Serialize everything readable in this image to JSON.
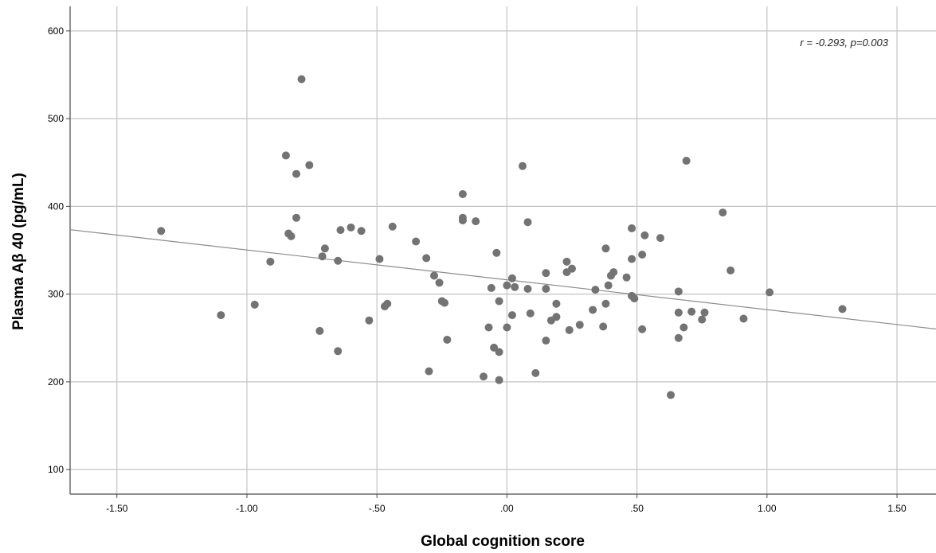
{
  "chart_data": {
    "type": "scatter",
    "title": "",
    "xlabel": "Global cognition score",
    "ylabel": "Plasma Aβ 40 (pg/mL)",
    "xlim": [
      -1.68,
      1.65
    ],
    "ylim": [
      72,
      628
    ],
    "x_ticks": [
      -1.5,
      -1.0,
      -0.5,
      0.0,
      0.5,
      1.0,
      1.5
    ],
    "x_tick_labels": [
      "-1.50",
      "-1.00",
      "-.50",
      ".00",
      ".50",
      "1.00",
      "1.50"
    ],
    "y_ticks": [
      100,
      200,
      300,
      400,
      500,
      600
    ],
    "y_tick_labels": [
      "100",
      "200",
      "300",
      "400",
      "500",
      "600"
    ],
    "grid": true,
    "annotation": "r = -0.293, p=0.003",
    "fit_line": {
      "slope": -34.0,
      "intercept": 316.3
    },
    "colors": {
      "points": "#737373",
      "fit_line": "#8c8c8c",
      "grid": "#c4c4c4",
      "axis": "#4a4a4a"
    },
    "points": [
      [
        -1.33,
        372
      ],
      [
        -1.1,
        276
      ],
      [
        -0.97,
        288
      ],
      [
        -0.91,
        337
      ],
      [
        -0.85,
        458
      ],
      [
        -0.84,
        369
      ],
      [
        -0.83,
        366
      ],
      [
        -0.81,
        437
      ],
      [
        -0.81,
        387
      ],
      [
        -0.79,
        545
      ],
      [
        -0.76,
        447
      ],
      [
        -0.72,
        258
      ],
      [
        -0.71,
        343
      ],
      [
        -0.7,
        352
      ],
      [
        -0.65,
        338
      ],
      [
        -0.65,
        235
      ],
      [
        -0.64,
        373
      ],
      [
        -0.6,
        376
      ],
      [
        -0.56,
        372
      ],
      [
        -0.53,
        270
      ],
      [
        -0.49,
        340
      ],
      [
        -0.47,
        286
      ],
      [
        -0.46,
        289
      ],
      [
        -0.44,
        377
      ],
      [
        -0.35,
        360
      ],
      [
        -0.31,
        341
      ],
      [
        -0.3,
        212
      ],
      [
        -0.28,
        321
      ],
      [
        -0.26,
        313
      ],
      [
        -0.25,
        292
      ],
      [
        -0.24,
        290
      ],
      [
        -0.23,
        248
      ],
      [
        -0.17,
        414
      ],
      [
        -0.17,
        387
      ],
      [
        -0.17,
        384
      ],
      [
        -0.12,
        383
      ],
      [
        -0.09,
        206
      ],
      [
        -0.07,
        262
      ],
      [
        -0.06,
        307
      ],
      [
        -0.05,
        239
      ],
      [
        -0.04,
        347
      ],
      [
        -0.03,
        292
      ],
      [
        -0.03,
        234
      ],
      [
        -0.03,
        202
      ],
      [
        0.0,
        262
      ],
      [
        0.0,
        310
      ],
      [
        0.02,
        318
      ],
      [
        0.02,
        276
      ],
      [
        0.03,
        308
      ],
      [
        0.06,
        446
      ],
      [
        0.08,
        382
      ],
      [
        0.08,
        306
      ],
      [
        0.09,
        278
      ],
      [
        0.11,
        210
      ],
      [
        0.15,
        324
      ],
      [
        0.15,
        306
      ],
      [
        0.15,
        247
      ],
      [
        0.17,
        270
      ],
      [
        0.19,
        289
      ],
      [
        0.19,
        274
      ],
      [
        0.23,
        337
      ],
      [
        0.23,
        325
      ],
      [
        0.24,
        259
      ],
      [
        0.25,
        329
      ],
      [
        0.28,
        265
      ],
      [
        0.33,
        282
      ],
      [
        0.34,
        305
      ],
      [
        0.37,
        263
      ],
      [
        0.38,
        352
      ],
      [
        0.38,
        289
      ],
      [
        0.39,
        310
      ],
      [
        0.4,
        321
      ],
      [
        0.41,
        325
      ],
      [
        0.46,
        319
      ],
      [
        0.48,
        375
      ],
      [
        0.48,
        340
      ],
      [
        0.48,
        298
      ],
      [
        0.49,
        295
      ],
      [
        0.52,
        345
      ],
      [
        0.52,
        260
      ],
      [
        0.53,
        367
      ],
      [
        0.59,
        364
      ],
      [
        0.63,
        185
      ],
      [
        0.66,
        303
      ],
      [
        0.66,
        279
      ],
      [
        0.66,
        250
      ],
      [
        0.68,
        262
      ],
      [
        0.69,
        452
      ],
      [
        0.71,
        280
      ],
      [
        0.75,
        271
      ],
      [
        0.76,
        279
      ],
      [
        0.83,
        393
      ],
      [
        0.86,
        327
      ],
      [
        0.91,
        272
      ],
      [
        1.01,
        302
      ],
      [
        1.29,
        283
      ]
    ]
  }
}
